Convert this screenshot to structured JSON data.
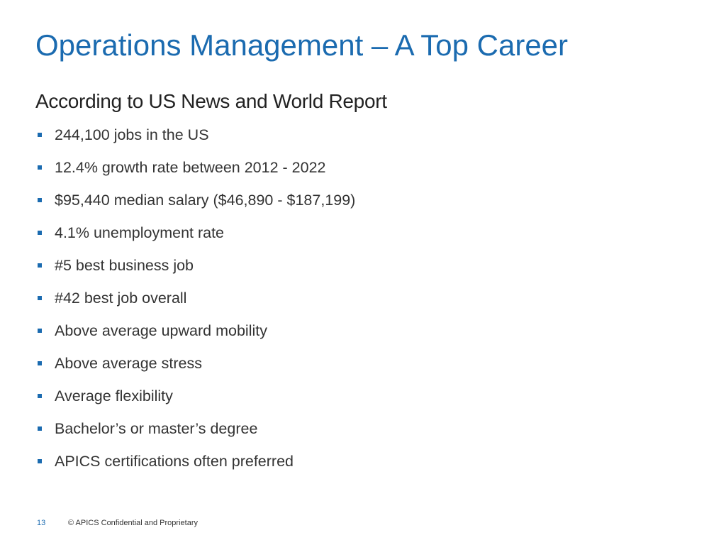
{
  "slide": {
    "title": "Operations Management – A Top Career",
    "subtitle": "According to US News and World Report",
    "bullets": [
      "244,100 jobs in the US",
      "12.4% growth rate between 2012 - 2022",
      "$95,440 median salary ($46,890 - $187,199)",
      "4.1% unemployment rate",
      "#5 best business job",
      "#42 best job overall",
      "Above average upward mobility",
      "Above average stress",
      "Average flexibility",
      "Bachelor’s or master’s degree",
      "APICS certifications often preferred"
    ],
    "bullet_icon": "square-bullet-icon",
    "accent_color": "#1b6bb0"
  },
  "footer": {
    "page_number": "13",
    "copyright": "© APICS Confidential and Proprietary"
  }
}
